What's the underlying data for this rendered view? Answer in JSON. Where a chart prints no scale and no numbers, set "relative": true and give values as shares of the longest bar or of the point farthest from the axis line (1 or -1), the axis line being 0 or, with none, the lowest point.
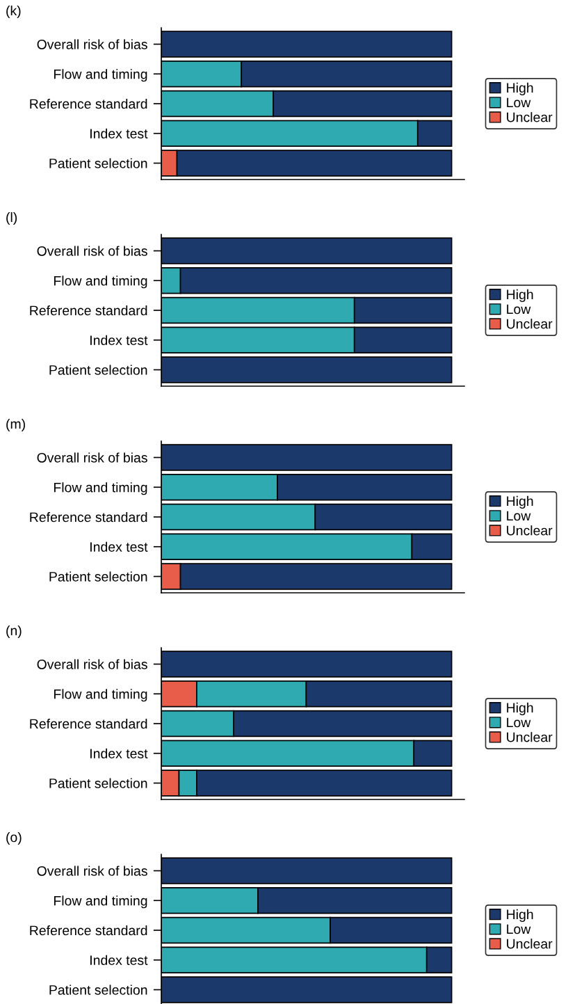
{
  "chart_data": [
    {
      "type": "bar",
      "title": "(k)",
      "orientation": "horizontal",
      "stacked": true,
      "relative": true,
      "legend": "right",
      "categories": [
        "Overall risk of bias",
        "Flow and timing",
        "Reference standard",
        "Index test",
        "Patient selection"
      ],
      "series": [
        {
          "name": "Unclear",
          "color": "#e85c4a",
          "values": [
            null,
            null,
            null,
            null,
            0.054
          ]
        },
        {
          "name": "Low",
          "color": "#2eaab0",
          "values": [
            null,
            0.276,
            0.386,
            0.883,
            null
          ]
        },
        {
          "name": "High",
          "color": "#1b3a6b",
          "values": [
            1,
            0.724,
            0.614,
            0.117,
            0.946
          ]
        }
      ]
    },
    {
      "type": "bar",
      "title": "(l)",
      "orientation": "horizontal",
      "stacked": true,
      "relative": true,
      "legend": "right",
      "categories": [
        "Overall risk of bias",
        "Flow and timing",
        "Reference standard",
        "Index test",
        "Patient selection"
      ],
      "series": [
        {
          "name": "Unclear",
          "color": "#e85c4a",
          "values": [
            null,
            null,
            null,
            null,
            null
          ]
        },
        {
          "name": "Low",
          "color": "#2eaab0",
          "values": [
            null,
            0.066,
            0.665,
            0.665,
            null
          ]
        },
        {
          "name": "High",
          "color": "#1b3a6b",
          "values": [
            1,
            0.934,
            0.335,
            0.335,
            1
          ]
        }
      ]
    },
    {
      "type": "bar",
      "title": "(m)",
      "orientation": "horizontal",
      "stacked": true,
      "relative": true,
      "legend": "right",
      "categories": [
        "Overall risk of bias",
        "Flow and timing",
        "Reference standard",
        "Index test",
        "Patient selection"
      ],
      "series": [
        {
          "name": "Unclear",
          "color": "#e85c4a",
          "values": [
            null,
            null,
            null,
            null,
            0.066
          ]
        },
        {
          "name": "Low",
          "color": "#2eaab0",
          "values": [
            null,
            0.4,
            0.53,
            0.863,
            null
          ]
        },
        {
          "name": "High",
          "color": "#1b3a6b",
          "values": [
            1,
            0.6,
            0.47,
            0.137,
            0.934
          ]
        }
      ]
    },
    {
      "type": "bar",
      "title": "(n)",
      "orientation": "horizontal",
      "stacked": true,
      "relative": true,
      "legend": "right",
      "categories": [
        "Overall risk of bias",
        "Flow and timing",
        "Reference standard",
        "Index test",
        "Patient selection"
      ],
      "series": [
        {
          "name": "Unclear",
          "color": "#e85c4a",
          "values": [
            null,
            0.122,
            null,
            null,
            0.061
          ]
        },
        {
          "name": "Low",
          "color": "#2eaab0",
          "values": [
            null,
            0.377,
            0.249,
            0.87,
            0.061
          ]
        },
        {
          "name": "High",
          "color": "#1b3a6b",
          "values": [
            1,
            0.501,
            0.751,
            0.13,
            0.878
          ]
        }
      ]
    },
    {
      "type": "bar",
      "title": "(o)",
      "orientation": "horizontal",
      "stacked": true,
      "relative": true,
      "legend": "right",
      "categories": [
        "Overall risk of bias",
        "Flow and timing",
        "Reference standard",
        "Index test",
        "Patient selection"
      ],
      "series": [
        {
          "name": "Unclear",
          "color": "#e85c4a",
          "values": [
            null,
            null,
            null,
            null,
            null
          ]
        },
        {
          "name": "Low",
          "color": "#2eaab0",
          "values": [
            null,
            0.333,
            0.582,
            0.914,
            null
          ]
        },
        {
          "name": "High",
          "color": "#1b3a6b",
          "values": [
            1,
            0.667,
            0.418,
            0.086,
            1
          ]
        }
      ]
    }
  ]
}
